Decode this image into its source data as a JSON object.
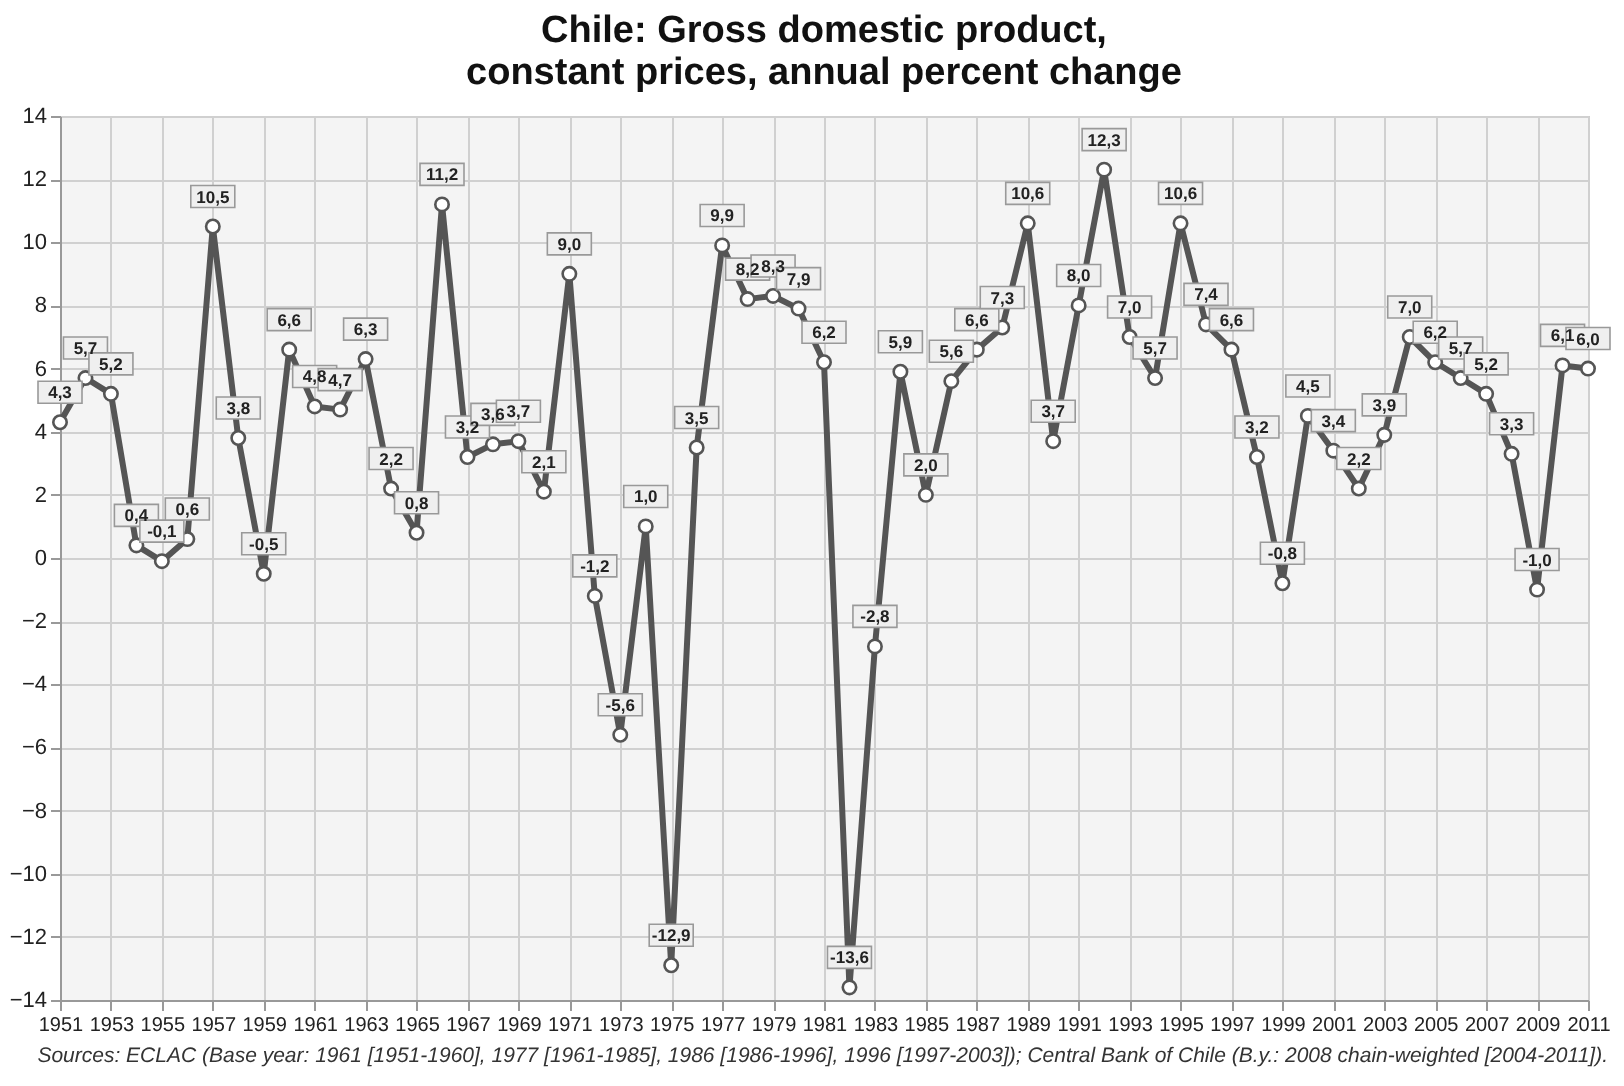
{
  "chart_data": {
    "type": "line",
    "title": "Chile: Gross domestic product,\nconstant prices, annual percent change",
    "x": [
      1951,
      1952,
      1953,
      1954,
      1955,
      1956,
      1957,
      1958,
      1959,
      1960,
      1961,
      1962,
      1963,
      1964,
      1965,
      1966,
      1967,
      1968,
      1969,
      1970,
      1971,
      1972,
      1973,
      1974,
      1975,
      1976,
      1977,
      1978,
      1979,
      1980,
      1981,
      1982,
      1983,
      1984,
      1985,
      1986,
      1987,
      1988,
      1989,
      1990,
      1991,
      1992,
      1993,
      1994,
      1995,
      1996,
      1997,
      1998,
      1999,
      2000,
      2001,
      2002,
      2003,
      2004,
      2005,
      2006,
      2007,
      2008,
      2009,
      2010,
      2011
    ],
    "series": [
      {
        "color": "#555555",
        "values": [
          4.3,
          5.7,
          5.2,
          0.4,
          -0.1,
          0.6,
          10.5,
          3.8,
          -0.5,
          6.6,
          4.8,
          4.7,
          6.3,
          2.2,
          0.8,
          11.2,
          3.2,
          3.6,
          3.7,
          2.1,
          9.0,
          -1.2,
          -5.6,
          1.0,
          -12.9,
          3.5,
          9.9,
          8.2,
          8.3,
          7.9,
          6.2,
          -13.6,
          -2.8,
          5.9,
          2.0,
          5.6,
          6.6,
          7.3,
          10.6,
          3.7,
          8.0,
          12.3,
          7.0,
          5.7,
          10.6,
          7.4,
          6.6,
          3.2,
          -0.8,
          4.5,
          3.4,
          2.2,
          3.9,
          7.0,
          6.2,
          5.7,
          5.2,
          3.3,
          -1.0,
          6.1,
          6.0
        ],
        "value_labels": [
          "4,3",
          "5,7",
          "5,2",
          "0,4",
          "-0,1",
          "0,6",
          "10,5",
          "3,8",
          "-0,5",
          "6,6",
          "4,8",
          "4,7",
          "6,3",
          "2,2",
          "0,8",
          "11,2",
          "3,2",
          "3,6",
          "3,7",
          "2,1",
          "9,0",
          "-1,2",
          "-5,6",
          "1,0",
          "-12,9",
          "3,5",
          "9,9",
          "8,2",
          "8,3",
          "7,9",
          "6,2",
          "-13,6",
          "-2,8",
          "5,9",
          "2,0",
          "5,6",
          "6,6",
          "7,3",
          "10,6",
          "3,7",
          "8,0",
          "12,3",
          "7,0",
          "5,7",
          "10,6",
          "7,4",
          "6,6",
          "3,2",
          "-0,8",
          "4,5",
          "3,4",
          "2,2",
          "3,9",
          "7,0",
          "6,2",
          "5,7",
          "5,2",
          "3,3",
          "-1,0",
          "6,1",
          "6,0"
        ]
      }
    ],
    "xlim": [
      1951,
      2011
    ],
    "xticks": [
      1951,
      1953,
      1955,
      1957,
      1959,
      1961,
      1963,
      1965,
      1967,
      1969,
      1971,
      1973,
      1975,
      1977,
      1979,
      1981,
      1983,
      1985,
      1987,
      1989,
      1991,
      1993,
      1995,
      1997,
      1999,
      2001,
      2003,
      2005,
      2007,
      2009,
      2011
    ],
    "ylim": [
      -14,
      14
    ],
    "yticks": [
      -14,
      -12,
      -10,
      -8,
      -6,
      -4,
      -2,
      0,
      2,
      4,
      6,
      8,
      10,
      12,
      14
    ],
    "grid": true,
    "marker": "circle",
    "line_style": "solid",
    "annotations": [
      "Sources: ECLAC (Base year: 1961 [1951-1960], 1977 [1961-1985], 1986 [1986-1996], 1996 [1997-2003]); Central Bank of Chile (B.y.: 2008 chain-weighted [2004-2011])."
    ]
  }
}
